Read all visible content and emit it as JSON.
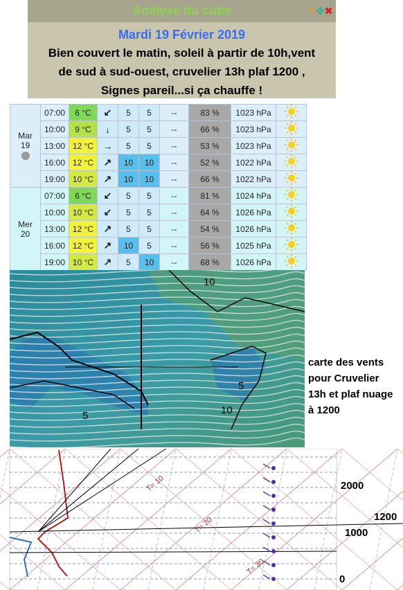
{
  "header": {
    "title": "Analyse du cube",
    "date": "Mardi 19 Février 2019",
    "text": [
      "Bien couvert le matin, soleil à partir de 10h,vent",
      "de sud à sud-ouest, cruvelier 13h plaf 1200 ,",
      "Signes pareil...si ça chauffe !"
    ]
  },
  "table": {
    "days": [
      {
        "label": [
          "Mar",
          "19"
        ],
        "rows": [
          [
            "07:00",
            "6 °C",
            "↙",
            "5",
            "5",
            "--",
            "83 %",
            "1023 hPa"
          ],
          [
            "10:00",
            "9 °C",
            "↓",
            "5",
            "5",
            "--",
            "66 %",
            "1023 hPa"
          ],
          [
            "13:00",
            "12 °C",
            "→",
            "5",
            "5",
            "--",
            "53 %",
            "1023 hPa"
          ],
          [
            "16:00",
            "12 °C",
            "↗",
            "10",
            "10",
            "--",
            "52 %",
            "1022 hPa"
          ],
          [
            "19:00",
            "10 °C",
            "↗",
            "10",
            "10",
            "--",
            "66 %",
            "1022 hPa"
          ]
        ]
      },
      {
        "label": [
          "Mer",
          "20"
        ],
        "rows": [
          [
            "07:00",
            "6 °C",
            "↙",
            "5",
            "5",
            "--",
            "81 %",
            "1024 hPa"
          ],
          [
            "10:00",
            "10 °C",
            "↙",
            "5",
            "5",
            "--",
            "64 %",
            "1026 hPa"
          ],
          [
            "13:00",
            "12 °C",
            "↗",
            "5",
            "5",
            "--",
            "54 %",
            "1026 hPa"
          ],
          [
            "16:00",
            "12 °C",
            "↗",
            "10",
            "5",
            "--",
            "56 %",
            "1025 hPa"
          ],
          [
            "19:00",
            "10 °C",
            "↗",
            "5",
            "10",
            "--",
            "68 %",
            "1026 hPa"
          ]
        ]
      }
    ]
  },
  "map": {
    "labels": [
      "10",
      "5",
      "10",
      "5"
    ],
    "caption": [
      "carte des vents",
      "pour Cruvelier",
      "13h et plaf nuage",
      "à 1200"
    ]
  },
  "sounding": {
    "isotherms": [
      "T= 10",
      "T= 20",
      "T= 30"
    ],
    "levels": [
      "2000",
      "1200",
      "1000",
      "0"
    ]
  }
}
